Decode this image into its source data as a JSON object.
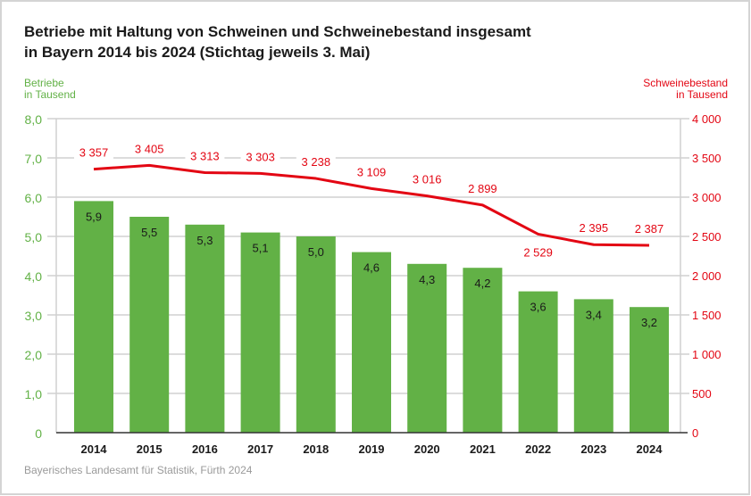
{
  "chart_data": {
    "type": "bar+line",
    "title_line1": "Betriebe mit Haltung von Schweinen und Schweinebestand insgesamt",
    "title_line2": "in Bayern 2014 bis 2024 (Stichtag jeweils 3. Mai)",
    "left_axis_label": [
      "Betriebe",
      "in Tausend"
    ],
    "right_axis_label": [
      "Schweinebestand",
      "in Tausend"
    ],
    "categories": [
      "2014",
      "2015",
      "2016",
      "2017",
      "2018",
      "2019",
      "2020",
      "2021",
      "2022",
      "2023",
      "2024"
    ],
    "series": [
      {
        "name": "Betriebe",
        "type": "bar",
        "axis": "left",
        "color": "#62b146",
        "values": [
          5.9,
          5.5,
          5.3,
          5.1,
          5.0,
          4.6,
          4.3,
          4.2,
          3.6,
          3.4,
          3.2
        ],
        "labels": [
          "5,9",
          "5,5",
          "5,3",
          "5,1",
          "5,0",
          "4,6",
          "4,3",
          "4,2",
          "3,6",
          "3,4",
          "3,2"
        ]
      },
      {
        "name": "Schweinebestand",
        "type": "line",
        "axis": "right",
        "color": "#e30613",
        "values": [
          3357,
          3405,
          3313,
          3303,
          3238,
          3109,
          3016,
          2899,
          2529,
          2395,
          2387
        ],
        "labels": [
          "3 357",
          "3 405",
          "3 313",
          "3 303",
          "3 238",
          "3 109",
          "3 016",
          "2 899",
          "2 529",
          "2 395",
          "2 387"
        ]
      }
    ],
    "left_ylim": [
      0,
      8
    ],
    "left_ticks": [
      "0",
      "1,0",
      "2,0",
      "3,0",
      "4,0",
      "5,0",
      "6,0",
      "7,0",
      "8,0"
    ],
    "right_ylim": [
      0,
      4000
    ],
    "right_ticks": [
      "0",
      "500",
      "1 000",
      "1 500",
      "2 000",
      "2 500",
      "3 000",
      "3 500",
      "4 000"
    ],
    "grid": true,
    "source": "Bayerisches Landesamt für Statistik, Fürth 2024"
  }
}
